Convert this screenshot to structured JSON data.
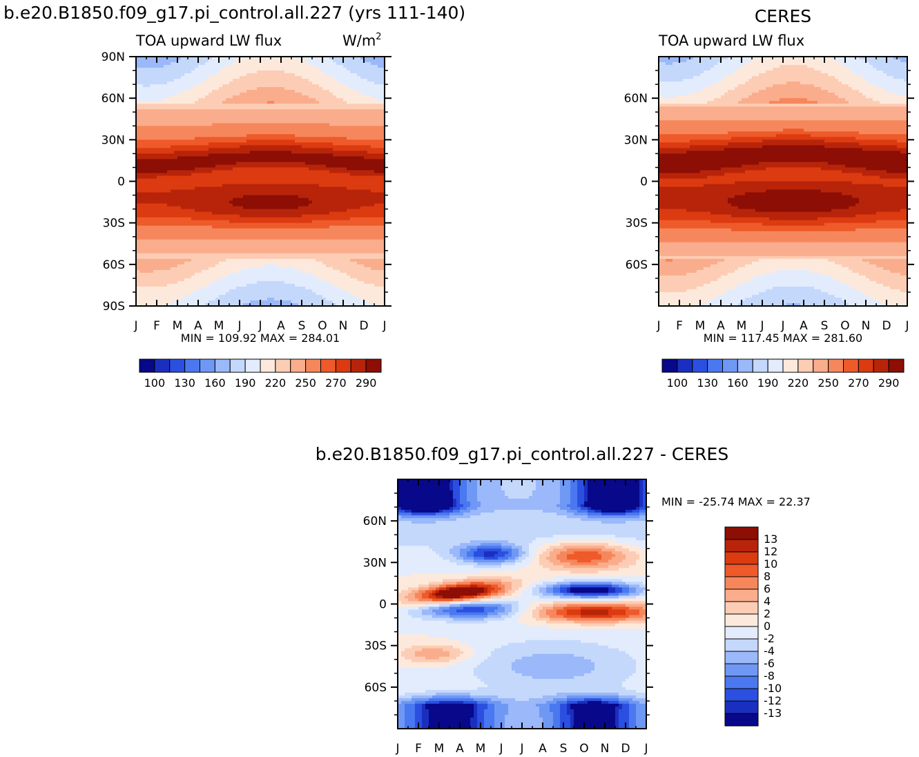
{
  "chart_data": [
    {
      "type": "heatmap",
      "title": "b.e20.B1850.f09_g17.pi_control.all.227 (yrs 111-140)",
      "subtitle_left": "TOA upward LW flux",
      "subtitle_right": "W/m",
      "subtitle_right_sup": "2",
      "x": [
        "J",
        "F",
        "M",
        "A",
        "M",
        "J",
        "J",
        "A",
        "S",
        "O",
        "N",
        "D",
        "J"
      ],
      "y_ticks": [
        "90N",
        "60N",
        "30N",
        "0",
        "30S",
        "60S",
        "90S"
      ],
      "y_values": [
        90,
        60,
        30,
        0,
        -30,
        -60,
        -90
      ],
      "x_months": [
        1,
        2,
        3,
        4,
        5,
        6,
        7,
        8,
        9,
        10,
        11,
        12,
        13
      ],
      "stats": "MIN = 109.92  MAX = 284.01",
      "colorbar_labels": [
        "100",
        "130",
        "160",
        "190",
        "220",
        "250",
        "270",
        "290"
      ],
      "colorbar_levels": [
        90,
        100,
        115,
        130,
        145,
        160,
        175,
        190,
        205,
        220,
        235,
        250,
        260,
        270,
        280,
        290
      ],
      "features": {
        "itcz_north_lat": 14,
        "itcz_south_lat": -18,
        "equatorial_min_lat": 5,
        "max_value": 284.01,
        "min_value": 109.92
      }
    },
    {
      "type": "heatmap",
      "title": "CERES",
      "subtitle_left": "TOA upward LW flux",
      "x": [
        "J",
        "F",
        "M",
        "A",
        "M",
        "J",
        "J",
        "A",
        "S",
        "O",
        "N",
        "D",
        "J"
      ],
      "y_ticks": [
        "60N",
        "30N",
        "0",
        "30S",
        "60S"
      ],
      "y_values": [
        60,
        30,
        0,
        -30,
        -60
      ],
      "x_months": [
        1,
        2,
        3,
        4,
        5,
        6,
        7,
        8,
        9,
        10,
        11,
        12,
        13
      ],
      "stats": "MIN = 117.45  MAX = 281.60",
      "colorbar_labels": [
        "100",
        "130",
        "160",
        "190",
        "220",
        "250",
        "270",
        "290"
      ],
      "colorbar_levels": [
        90,
        100,
        115,
        130,
        145,
        160,
        175,
        190,
        205,
        220,
        235,
        250,
        260,
        270,
        280,
        290
      ],
      "features": {
        "itcz_north_lat": 18,
        "itcz_south_lat": -18,
        "max_value": 281.6,
        "min_value": 117.45
      }
    },
    {
      "type": "heatmap",
      "title": "b.e20.B1850.f09_g17.pi_control.all.227 - CERES",
      "x": [
        "J",
        "F",
        "M",
        "A",
        "M",
        "J",
        "J",
        "A",
        "S",
        "O",
        "N",
        "D",
        "J"
      ],
      "y_ticks": [
        "60N",
        "30N",
        "0",
        "30S",
        "60S"
      ],
      "y_values": [
        60,
        30,
        0,
        -30,
        -60
      ],
      "x_months": [
        1,
        2,
        3,
        4,
        5,
        6,
        7,
        8,
        9,
        10,
        11,
        12,
        13
      ],
      "stats": "MIN = -25.74 MAX =   22.37",
      "colorbar_labels": [
        "13",
        "12",
        "10",
        "8",
        "6",
        "4",
        "2",
        "0",
        "-2",
        "-4",
        "-6",
        "-8",
        "-10",
        "-12",
        "-13"
      ],
      "colorbar_levels": [
        13,
        12,
        10,
        8,
        6,
        4,
        2,
        0,
        -2,
        -4,
        -6,
        -8,
        -10,
        -12,
        -13
      ],
      "features": {
        "min_value": -25.74,
        "max_value": 22.37
      }
    }
  ],
  "colors": {
    "abs_scale": [
      "#08088a",
      "#1a2fc0",
      "#2b4fe0",
      "#4a78f0",
      "#6f98f5",
      "#9ab8fa",
      "#c4d8fc",
      "#e2ecfd",
      "#fde9dc",
      "#fccdb4",
      "#faad8c",
      "#f6875c",
      "#ee5a2a",
      "#dc3a10",
      "#b8240a",
      "#8c0e04"
    ],
    "diff_scale": [
      "#8c0e04",
      "#b8240a",
      "#dc3a10",
      "#ee5a2a",
      "#f6875c",
      "#faad8c",
      "#fccdb4",
      "#fde9dc",
      "#e2ecfd",
      "#c4d8fc",
      "#9ab8fa",
      "#6f98f5",
      "#4a78f0",
      "#2b4fe0",
      "#1a2fc0",
      "#08088a"
    ]
  }
}
